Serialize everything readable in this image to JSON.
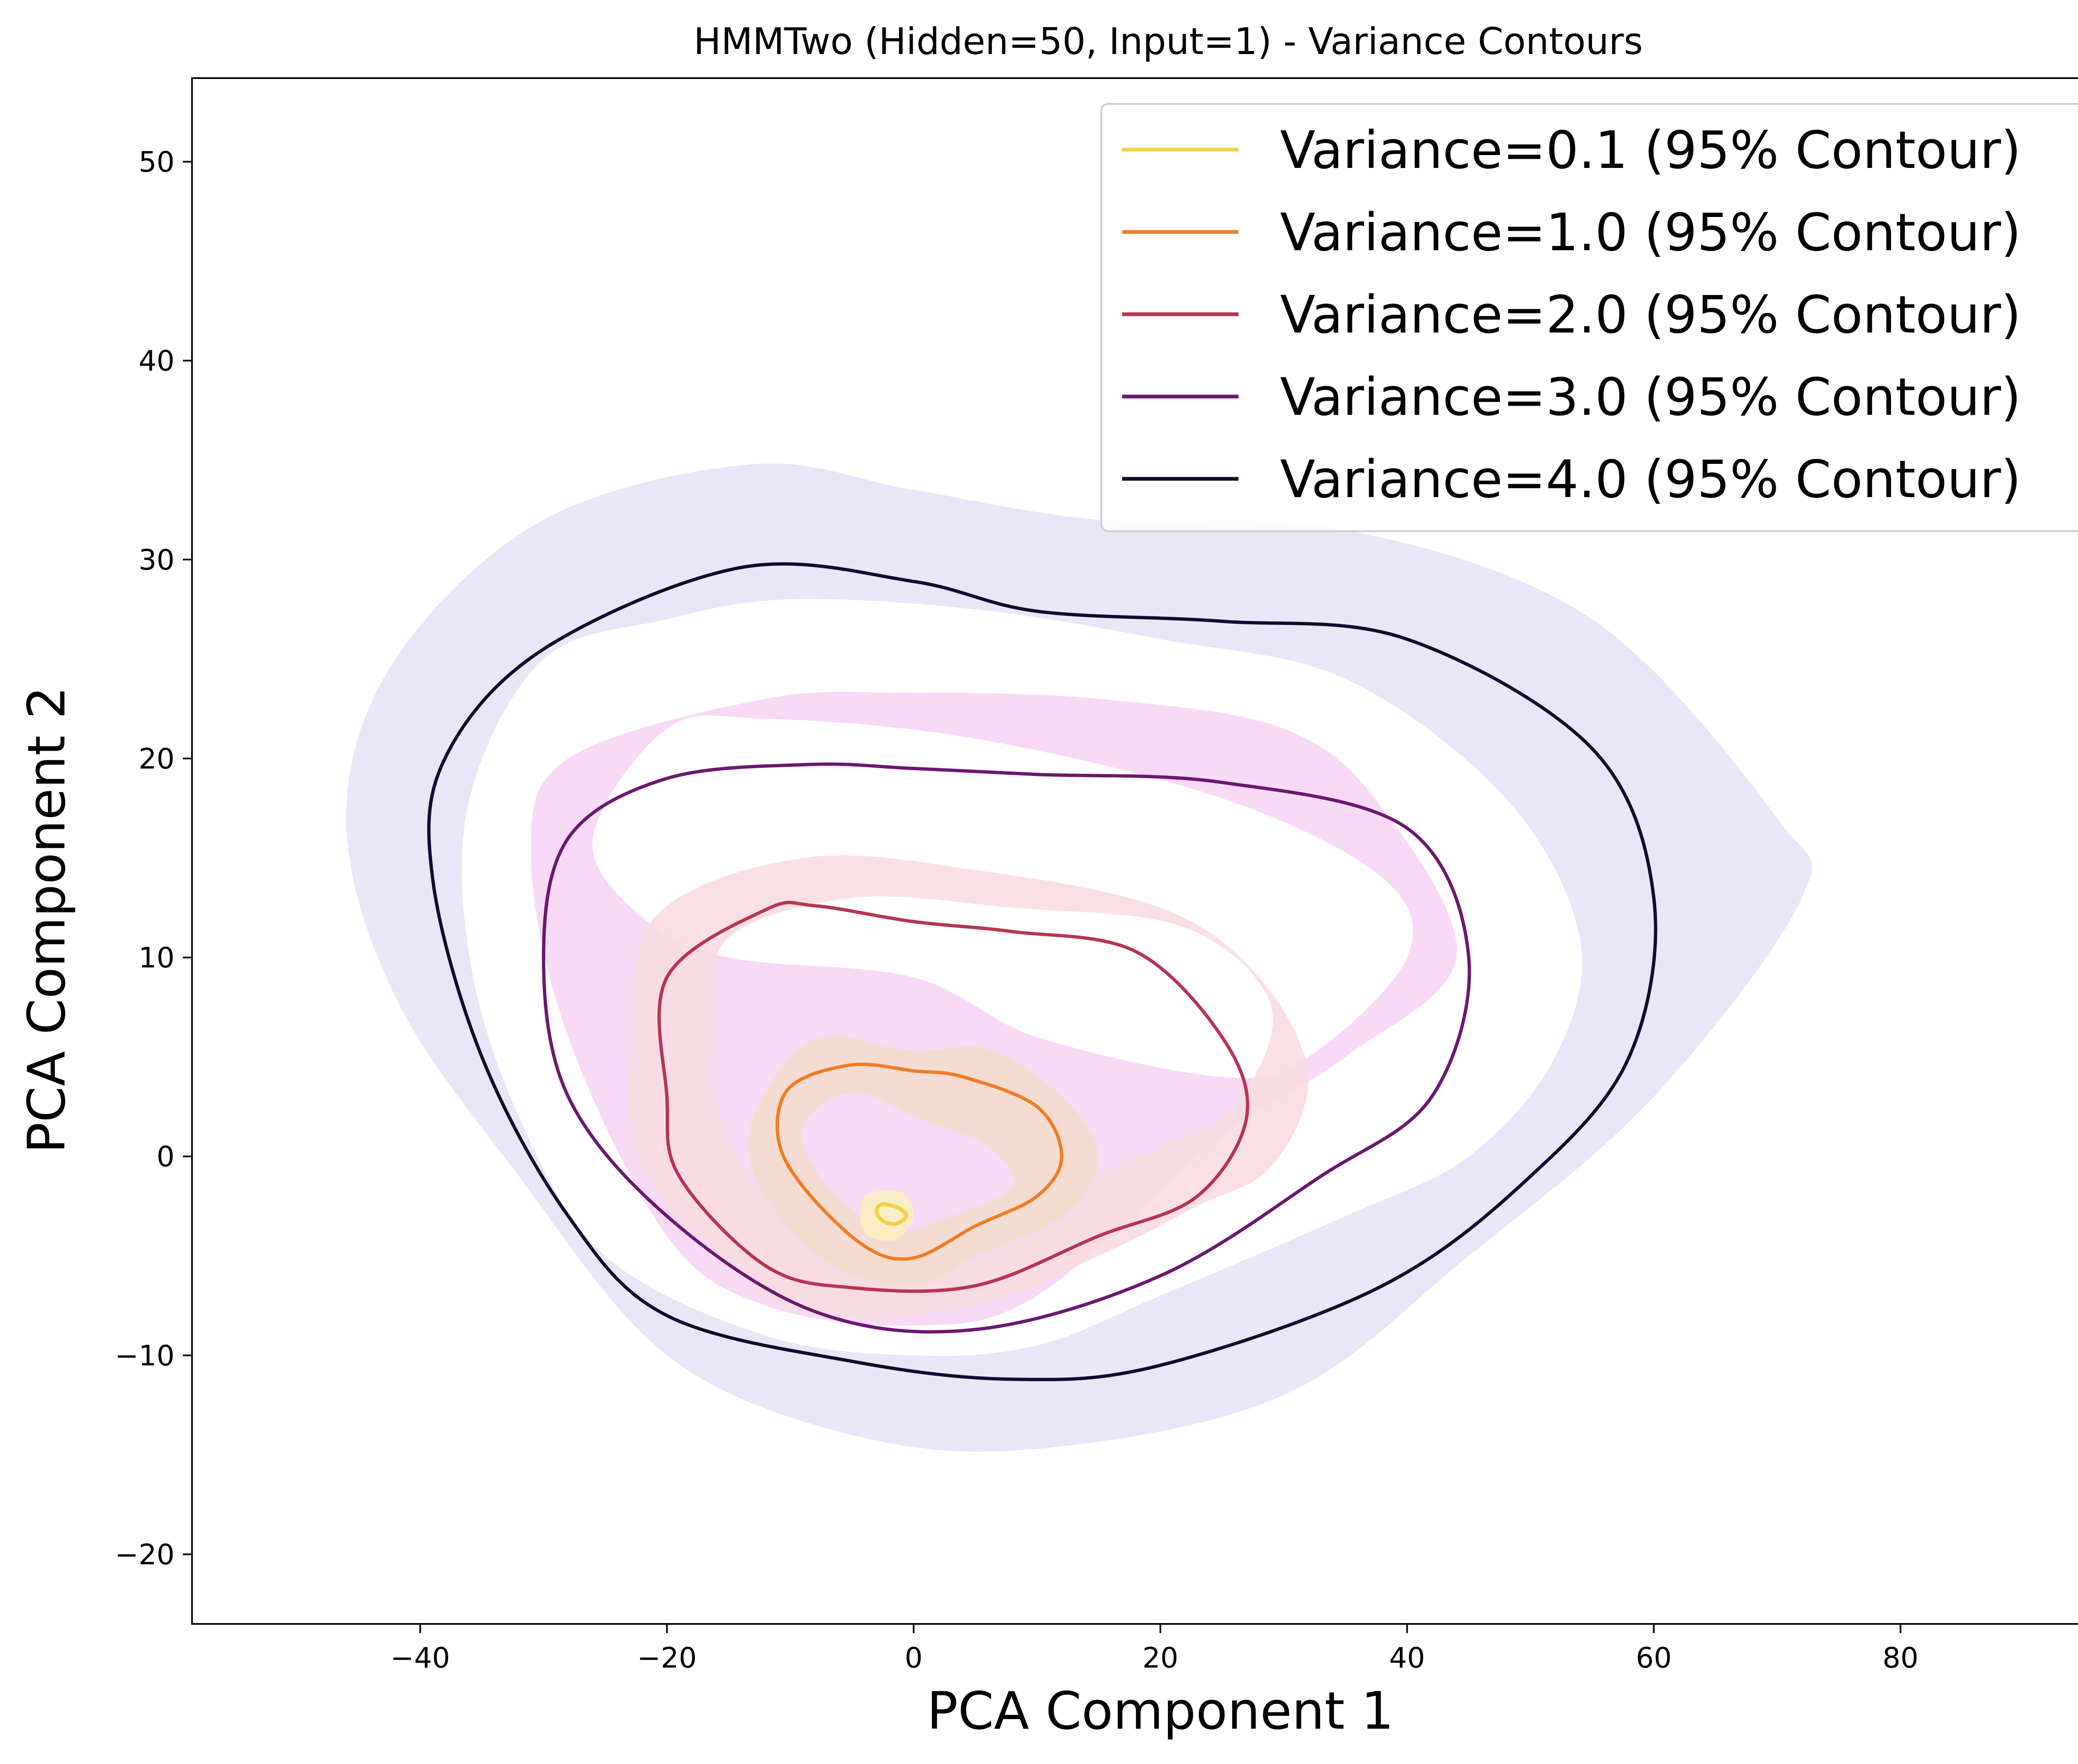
{
  "chart_data": {
    "type": "contour",
    "title": "HMMTwo (Hidden=50, Input=1) - Variance Contours",
    "xlabel": "PCA Component 1",
    "ylabel": "PCA Component 2",
    "xlim": [
      -58.5,
      98.5
    ],
    "ylim": [
      -23.5,
      54.2
    ],
    "xticks": [
      -40,
      -20,
      0,
      20,
      40,
      60,
      80
    ],
    "yticks": [
      -20,
      -10,
      0,
      10,
      20,
      30,
      40,
      50
    ],
    "grid": false,
    "legend_position": "upper right",
    "series": [
      {
        "name": "Variance=0.1 (95% Contour)",
        "color": "#f1d33f",
        "fill_color": "#fbefc0",
        "line": [
          [
            -2.5,
            -2.4
          ],
          [
            -1.2,
            -2.6
          ],
          [
            -0.6,
            -3.0
          ],
          [
            -1.5,
            -3.4
          ],
          [
            -2.6,
            -3.2
          ],
          [
            -3.0,
            -2.7
          ],
          [
            -2.5,
            -2.4
          ]
        ],
        "band_outer": [
          [
            -4,
            -2
          ],
          [
            -1,
            -1.8
          ],
          [
            0,
            -3
          ],
          [
            -1.5,
            -4.2
          ],
          [
            -4,
            -3.8
          ],
          [
            -4,
            -2
          ]
        ],
        "band_inner": []
      },
      {
        "name": "Variance=1.0 (95% Contour)",
        "color": "#f07c23",
        "fill_color": "#f4dccb",
        "line": [
          [
            -5,
            4.6
          ],
          [
            0,
            4.3
          ],
          [
            4,
            4.0
          ],
          [
            10,
            2.5
          ],
          [
            12,
            0.0
          ],
          [
            10,
            -2.0
          ],
          [
            5,
            -3.5
          ],
          [
            0,
            -5.1
          ],
          [
            -4,
            -4.5
          ],
          [
            -9,
            -1.5
          ],
          [
            -11,
            1.0
          ],
          [
            -10,
            3.5
          ],
          [
            -5,
            4.6
          ]
        ],
        "band_outer": [
          [
            -8,
            5.9
          ],
          [
            0,
            5.3
          ],
          [
            6,
            5.4
          ],
          [
            12,
            3.0
          ],
          [
            15,
            0.0
          ],
          [
            12,
            -3.0
          ],
          [
            5,
            -5.0
          ],
          [
            0,
            -6.5
          ],
          [
            -7,
            -5.3
          ],
          [
            -12.5,
            -1.5
          ],
          [
            -13,
            2.0
          ],
          [
            -8,
            5.9
          ]
        ],
        "band_inner": [
          [
            -5,
            3.2
          ],
          [
            0,
            2.0
          ],
          [
            6,
            0.5
          ],
          [
            8,
            -1.5
          ],
          [
            3,
            -3.0
          ],
          [
            -2,
            -3.7
          ],
          [
            -7,
            -1.5
          ],
          [
            -9,
            1.5
          ],
          [
            -5,
            3.2
          ]
        ]
      },
      {
        "name": "Variance=2.0 (95% Contour)",
        "color": "#b73550",
        "fill_color": "#f9dbe1",
        "line": [
          [
            -8,
            12.6
          ],
          [
            0,
            11.8
          ],
          [
            8,
            11.3
          ],
          [
            18,
            10.3
          ],
          [
            25,
            6.0
          ],
          [
            27,
            2.0
          ],
          [
            23,
            -2.0
          ],
          [
            15,
            -4.0
          ],
          [
            5,
            -6.5
          ],
          [
            -5,
            -6.6
          ],
          [
            -12,
            -5.5
          ],
          [
            -19,
            -1.0
          ],
          [
            -20,
            3.0
          ],
          [
            -20,
            9.0
          ],
          [
            -12,
            12.4
          ],
          [
            -8,
            12.6
          ]
        ],
        "band_outer": [
          [
            -9,
            15.0
          ],
          [
            5,
            14.4
          ],
          [
            20,
            12.5
          ],
          [
            28,
            9.0
          ],
          [
            32,
            4.0
          ],
          [
            29,
            -0.5
          ],
          [
            23,
            -2.5
          ],
          [
            15,
            -5.0
          ],
          [
            5,
            -7.5
          ],
          [
            -8,
            -8.0
          ],
          [
            -15,
            -5.5
          ],
          [
            -22,
            -0.5
          ],
          [
            -23,
            5.0
          ],
          [
            -21,
            12.0
          ],
          [
            -9,
            15.0
          ]
        ],
        "band_inner": [
          [
            -15,
            11.0
          ],
          [
            -5,
            13.0
          ],
          [
            8,
            12.5
          ],
          [
            22,
            11.5
          ],
          [
            29,
            7.5
          ],
          [
            26,
            2.5
          ],
          [
            20,
            0.5
          ],
          [
            12,
            -2.0
          ],
          [
            5,
            -5.0
          ],
          [
            -5,
            -4.6
          ],
          [
            -12,
            -2.0
          ],
          [
            -16,
            2.5
          ],
          [
            -16,
            7.0
          ],
          [
            -15,
            11.0
          ]
        ]
      },
      {
        "name": "Variance=3.0 (95% Contour)",
        "color": "#6b1870",
        "fill_color": "#f7d4f6",
        "line": [
          [
            -8.5,
            19.7
          ],
          [
            0,
            19.5
          ],
          [
            10,
            19.2
          ],
          [
            25,
            18.8
          ],
          [
            40,
            16.5
          ],
          [
            45,
            10.0
          ],
          [
            42,
            3.0
          ],
          [
            33,
            -1.0
          ],
          [
            20,
            -6.0
          ],
          [
            5,
            -8.7
          ],
          [
            -8,
            -7.8
          ],
          [
            -20,
            -3.0
          ],
          [
            -28,
            3.0
          ],
          [
            -30,
            10.0
          ],
          [
            -28,
            16.0
          ],
          [
            -20,
            19.0
          ],
          [
            -8.5,
            19.7
          ]
        ],
        "band_outer": [
          [
            -12,
            23.0
          ],
          [
            0,
            23.3
          ],
          [
            15,
            23.0
          ],
          [
            30,
            21.5
          ],
          [
            38,
            17.5
          ],
          [
            44,
            10.0
          ],
          [
            35,
            5.0
          ],
          [
            25,
            1.0
          ],
          [
            10,
            -7.0
          ],
          [
            0,
            -8.5
          ],
          [
            -12,
            -7.5
          ],
          [
            -20,
            -4.0
          ],
          [
            -28,
            6.0
          ],
          [
            -31,
            15.0
          ],
          [
            -28,
            20.0
          ],
          [
            -12,
            23.0
          ]
        ],
        "band_inner": [
          [
            -20,
            21.5
          ],
          [
            -12,
            22.0
          ],
          [
            5,
            21.0
          ],
          [
            25,
            18.0
          ],
          [
            38,
            14.0
          ],
          [
            40,
            10.0
          ],
          [
            32,
            5.0
          ],
          [
            25,
            4.0
          ],
          [
            10,
            6.0
          ],
          [
            0,
            9.0
          ],
          [
            -15,
            10.0
          ],
          [
            -22,
            12.0
          ],
          [
            -26,
            16.0
          ],
          [
            -20,
            21.5
          ]
        ]
      },
      {
        "name": "Variance=4.0 (95% Contour)",
        "color": "#0f0c2e",
        "fill_color": "#e5e2f6",
        "line": [
          [
            -14,
            29.6
          ],
          [
            0,
            28.9
          ],
          [
            10,
            27.4
          ],
          [
            25,
            26.9
          ],
          [
            40,
            26.0
          ],
          [
            55,
            20.5
          ],
          [
            60,
            13.0
          ],
          [
            58,
            5.0
          ],
          [
            50,
            -1.0
          ],
          [
            38,
            -6.5
          ],
          [
            20,
            -10.5
          ],
          [
            8,
            -11.2
          ],
          [
            -5,
            -10.3
          ],
          [
            -20,
            -8.0
          ],
          [
            -28,
            -3.0
          ],
          [
            -35,
            5.0
          ],
          [
            -39,
            14.0
          ],
          [
            -38,
            20.0
          ],
          [
            -30,
            25.5
          ],
          [
            -14,
            29.6
          ]
        ],
        "band_outer": [
          [
            -13,
            34.8
          ],
          [
            0,
            33.5
          ],
          [
            15,
            32.0
          ],
          [
            35,
            31.5
          ],
          [
            55,
            27.0
          ],
          [
            70,
            17.0
          ],
          [
            72,
            13.0
          ],
          [
            60,
            3.0
          ],
          [
            45,
            -5.0
          ],
          [
            30,
            -12.0
          ],
          [
            10,
            -14.7
          ],
          [
            -5,
            -14.0
          ],
          [
            -20,
            -10.0
          ],
          [
            -32,
            -1.0
          ],
          [
            -42,
            8.0
          ],
          [
            -46,
            17.0
          ],
          [
            -42,
            25.0
          ],
          [
            -30,
            32.0
          ],
          [
            -13,
            34.8
          ]
        ],
        "band_inner": [
          [
            -30,
            25.0
          ],
          [
            -20,
            27.0
          ],
          [
            -10,
            28.0
          ],
          [
            5,
            27.5
          ],
          [
            20,
            26.0
          ],
          [
            35,
            24.0
          ],
          [
            48,
            18.0
          ],
          [
            54,
            11.0
          ],
          [
            52,
            5.0
          ],
          [
            45,
            0.0
          ],
          [
            35,
            -3.0
          ],
          [
            20,
            -7.0
          ],
          [
            10,
            -9.5
          ],
          [
            0,
            -10.0
          ],
          [
            -12,
            -9.0
          ],
          [
            -25,
            -5.0
          ],
          [
            -32,
            2.0
          ],
          [
            -36,
            10.0
          ],
          [
            -36,
            18.0
          ],
          [
            -30,
            25.0
          ]
        ]
      }
    ]
  }
}
